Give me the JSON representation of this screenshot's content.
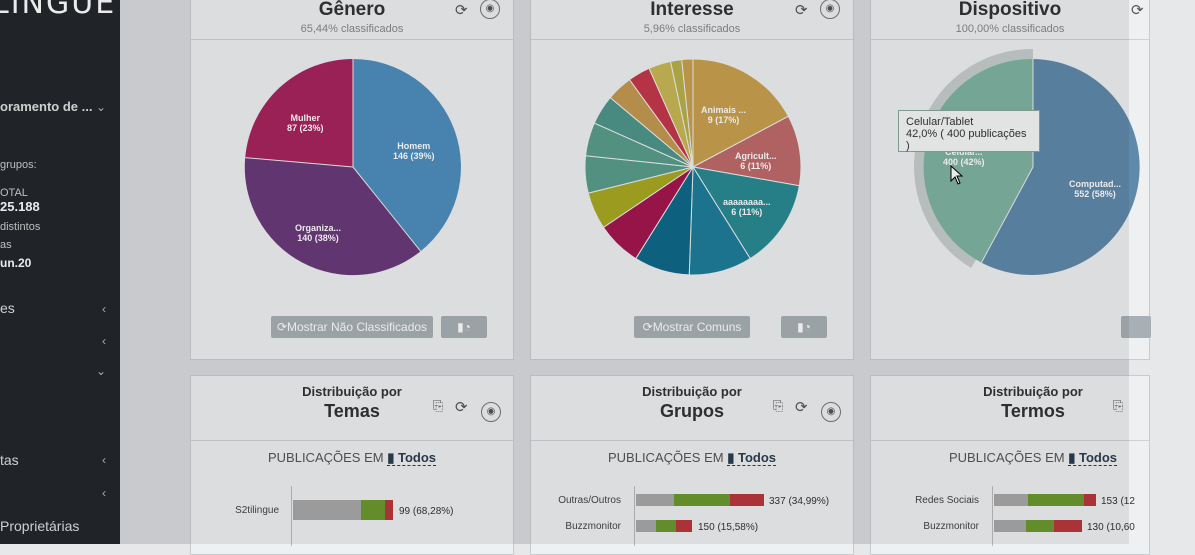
{
  "sidebar": {
    "logo": "LINGUE",
    "monitor_title": "oramento de ...",
    "groups_label": "grupos:",
    "total_label": "OTAL",
    "total_value": "25.188",
    "distinct_label": "distintos",
    "as_label": "as",
    "date_value": "un.20",
    "menu": [
      "es",
      "",
      "",
      "tas",
      "",
      "Proprietárias"
    ]
  },
  "panels": [
    {
      "title": "Gênero",
      "subtitle": "65,44% classificados",
      "button": "Mostrar Não Classificados"
    },
    {
      "title": "Interesse",
      "subtitle": "5,96% classificados",
      "button": "Mostrar Comuns"
    },
    {
      "title": "Dispositivo",
      "subtitle": "100,00% classificados"
    }
  ],
  "pie_genero": [
    {
      "label": "Homem",
      "value": "146 (39%)"
    },
    {
      "label": "Organiza...",
      "value": "140 (38%)"
    },
    {
      "label": "Mulher",
      "value": "87 (23%)"
    }
  ],
  "pie_interesse": [
    {
      "label": "Animais ...",
      "value": "9 (17%)"
    },
    {
      "label": "Agricult...",
      "value": "6 (11%)"
    },
    {
      "label": "aaaaaaaa...",
      "value": "6 (11%)"
    }
  ],
  "pie_dispositivo": [
    {
      "label": "Computad...",
      "value": "552 (58%)"
    },
    {
      "label": "Celular...",
      "value": "400 (42%)"
    }
  ],
  "tooltip": {
    "title": "Celular/Tablet",
    "value": "42,0% ( 400 publicações )"
  },
  "dist": [
    {
      "pre": "Distribuição por",
      "title": "Temas",
      "pub": "PUBLICAÇÕES EM",
      "pub_link": "Todos",
      "rows": [
        {
          "label": "S2tilingue",
          "value": "99 (68,28%)"
        }
      ]
    },
    {
      "pre": "Distribuição por",
      "title": "Grupos",
      "pub": "PUBLICAÇÕES EM",
      "pub_link": "Todos",
      "rows": [
        {
          "label": "Outras/Outros",
          "value": "337 (34,99%)"
        },
        {
          "label": "Buzzmonitor",
          "value": "150 (15,58%)"
        }
      ]
    },
    {
      "pre": "Distribuição por",
      "title": "Termos",
      "pub": "PUBLICAÇÕES EM",
      "pub_link": "Todos",
      "rows": [
        {
          "label": "Redes Sociais",
          "value": "153 (12"
        },
        {
          "label": "Buzzmonitor",
          "value": "130 (10,60"
        }
      ]
    }
  ],
  "icons": {
    "refresh": "refresh-icon",
    "camera": "camera-icon",
    "chart_toggle": "bar-pie-icon",
    "export": "export-icon"
  }
}
